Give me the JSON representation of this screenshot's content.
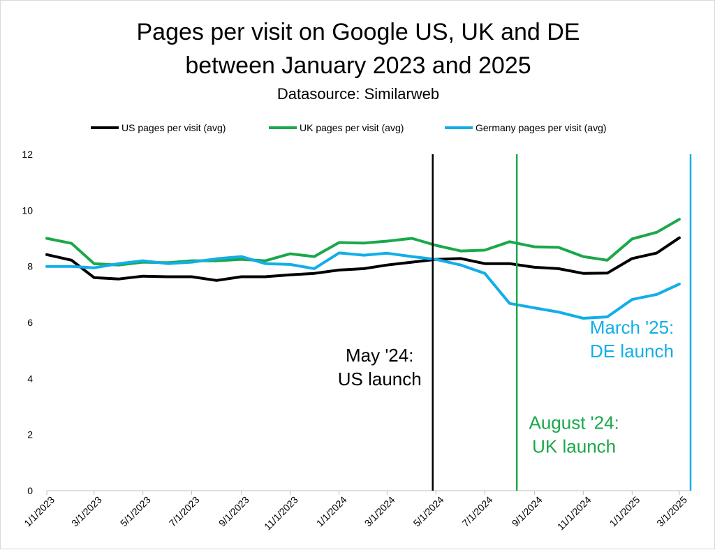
{
  "chart_data": {
    "type": "line",
    "title_lines": [
      "Pages per visit on Google US, UK and DE",
      "between January 2023 and 2025"
    ],
    "subtitle": "Datasource: Similarweb",
    "xlabel": "",
    "ylabel": "",
    "ylim": [
      0,
      12
    ],
    "yticks": [
      "0",
      "2",
      "4",
      "6",
      "8",
      "10",
      "12"
    ],
    "x_tick_labels": [
      "1/1/2023",
      "3/1/2023",
      "5/1/2023",
      "7/1/2023",
      "9/1/2023",
      "11/1/2023",
      "1/1/2024",
      "3/1/2024",
      "5/1/2024",
      "7/1/2024",
      "9/1/2024",
      "11/1/2024",
      "1/1/2025",
      "3/1/2025"
    ],
    "x_start": "1/1/2023",
    "x_end": "3/15/2025",
    "grid": false,
    "legend_position": "top",
    "series": [
      {
        "name": "US pages per visit (avg)",
        "color": "#000000",
        "points": [
          [
            "2023-01-01",
            8.42
          ],
          [
            "2023-02-01",
            8.22
          ],
          [
            "2023-03-01",
            7.6
          ],
          [
            "2023-04-01",
            7.55
          ],
          [
            "2023-05-01",
            7.65
          ],
          [
            "2023-06-01",
            7.63
          ],
          [
            "2023-07-01",
            7.63
          ],
          [
            "2023-08-01",
            7.5
          ],
          [
            "2023-09-01",
            7.63
          ],
          [
            "2023-10-01",
            7.63
          ],
          [
            "2023-11-01",
            7.7
          ],
          [
            "2023-12-01",
            7.75
          ],
          [
            "2024-01-01",
            7.87
          ],
          [
            "2024-02-01",
            7.92
          ],
          [
            "2024-03-01",
            8.05
          ],
          [
            "2024-04-01",
            8.15
          ],
          [
            "2024-05-01",
            8.25
          ],
          [
            "2024-06-01",
            8.28
          ],
          [
            "2024-07-01",
            8.1
          ],
          [
            "2024-08-01",
            8.1
          ],
          [
            "2024-09-01",
            7.97
          ],
          [
            "2024-10-01",
            7.92
          ],
          [
            "2024-11-01",
            7.75
          ],
          [
            "2024-12-01",
            7.76
          ],
          [
            "2025-01-01",
            8.28
          ],
          [
            "2025-02-01",
            8.48
          ],
          [
            "2025-03-01",
            9.02
          ]
        ]
      },
      {
        "name": "UK pages per visit (avg)",
        "color": "#1aa84a",
        "points": [
          [
            "2023-01-01",
            9.0
          ],
          [
            "2023-02-01",
            8.82
          ],
          [
            "2023-03-01",
            8.1
          ],
          [
            "2023-04-01",
            8.05
          ],
          [
            "2023-05-01",
            8.15
          ],
          [
            "2023-06-01",
            8.13
          ],
          [
            "2023-07-01",
            8.2
          ],
          [
            "2023-08-01",
            8.2
          ],
          [
            "2023-09-01",
            8.25
          ],
          [
            "2023-10-01",
            8.2
          ],
          [
            "2023-11-01",
            8.45
          ],
          [
            "2023-12-01",
            8.35
          ],
          [
            "2024-01-01",
            8.85
          ],
          [
            "2024-02-01",
            8.83
          ],
          [
            "2024-03-01",
            8.9
          ],
          [
            "2024-04-01",
            9.0
          ],
          [
            "2024-05-01",
            8.75
          ],
          [
            "2024-06-01",
            8.55
          ],
          [
            "2024-07-01",
            8.58
          ],
          [
            "2024-08-01",
            8.88
          ],
          [
            "2024-09-01",
            8.7
          ],
          [
            "2024-10-01",
            8.68
          ],
          [
            "2024-11-01",
            8.35
          ],
          [
            "2024-12-01",
            8.22
          ],
          [
            "2025-01-01",
            8.98
          ],
          [
            "2025-02-01",
            9.22
          ],
          [
            "2025-03-01",
            9.68
          ]
        ]
      },
      {
        "name": "Germany pages per visit (avg)",
        "color": "#12aee8",
        "points": [
          [
            "2023-01-01",
            8.0
          ],
          [
            "2023-02-01",
            8.0
          ],
          [
            "2023-03-01",
            7.95
          ],
          [
            "2023-04-01",
            8.1
          ],
          [
            "2023-05-01",
            8.2
          ],
          [
            "2023-06-01",
            8.1
          ],
          [
            "2023-07-01",
            8.15
          ],
          [
            "2023-08-01",
            8.27
          ],
          [
            "2023-09-01",
            8.35
          ],
          [
            "2023-10-01",
            8.1
          ],
          [
            "2023-11-01",
            8.07
          ],
          [
            "2023-12-01",
            7.92
          ],
          [
            "2024-01-01",
            8.48
          ],
          [
            "2024-02-01",
            8.4
          ],
          [
            "2024-03-01",
            8.47
          ],
          [
            "2024-04-01",
            8.35
          ],
          [
            "2024-05-01",
            8.25
          ],
          [
            "2024-06-01",
            8.05
          ],
          [
            "2024-07-01",
            7.75
          ],
          [
            "2024-08-01",
            6.68
          ],
          [
            "2024-09-01",
            6.52
          ],
          [
            "2024-10-01",
            6.37
          ],
          [
            "2024-11-01",
            6.15
          ],
          [
            "2024-12-01",
            6.2
          ],
          [
            "2025-01-01",
            6.82
          ],
          [
            "2025-02-01",
            7.0
          ],
          [
            "2025-03-01",
            7.37
          ]
        ]
      }
    ],
    "annotations": [
      {
        "id": "us-launch",
        "date": "2024-04-27",
        "color": "#000000",
        "lines": [
          "May '24:",
          "US launch"
        ],
        "label_y": 4.6,
        "label_side": "left"
      },
      {
        "id": "uk-launch",
        "date": "2024-08-10",
        "color": "#1aa84a",
        "lines": [
          "August '24:",
          "UK launch"
        ],
        "label_y": 2.2,
        "label_side": "right"
      },
      {
        "id": "de-launch",
        "date": "2025-03-15",
        "color": "#12aee8",
        "lines": [
          "March '25:",
          "DE launch"
        ],
        "label_y": 5.6,
        "label_side": "left"
      }
    ]
  }
}
